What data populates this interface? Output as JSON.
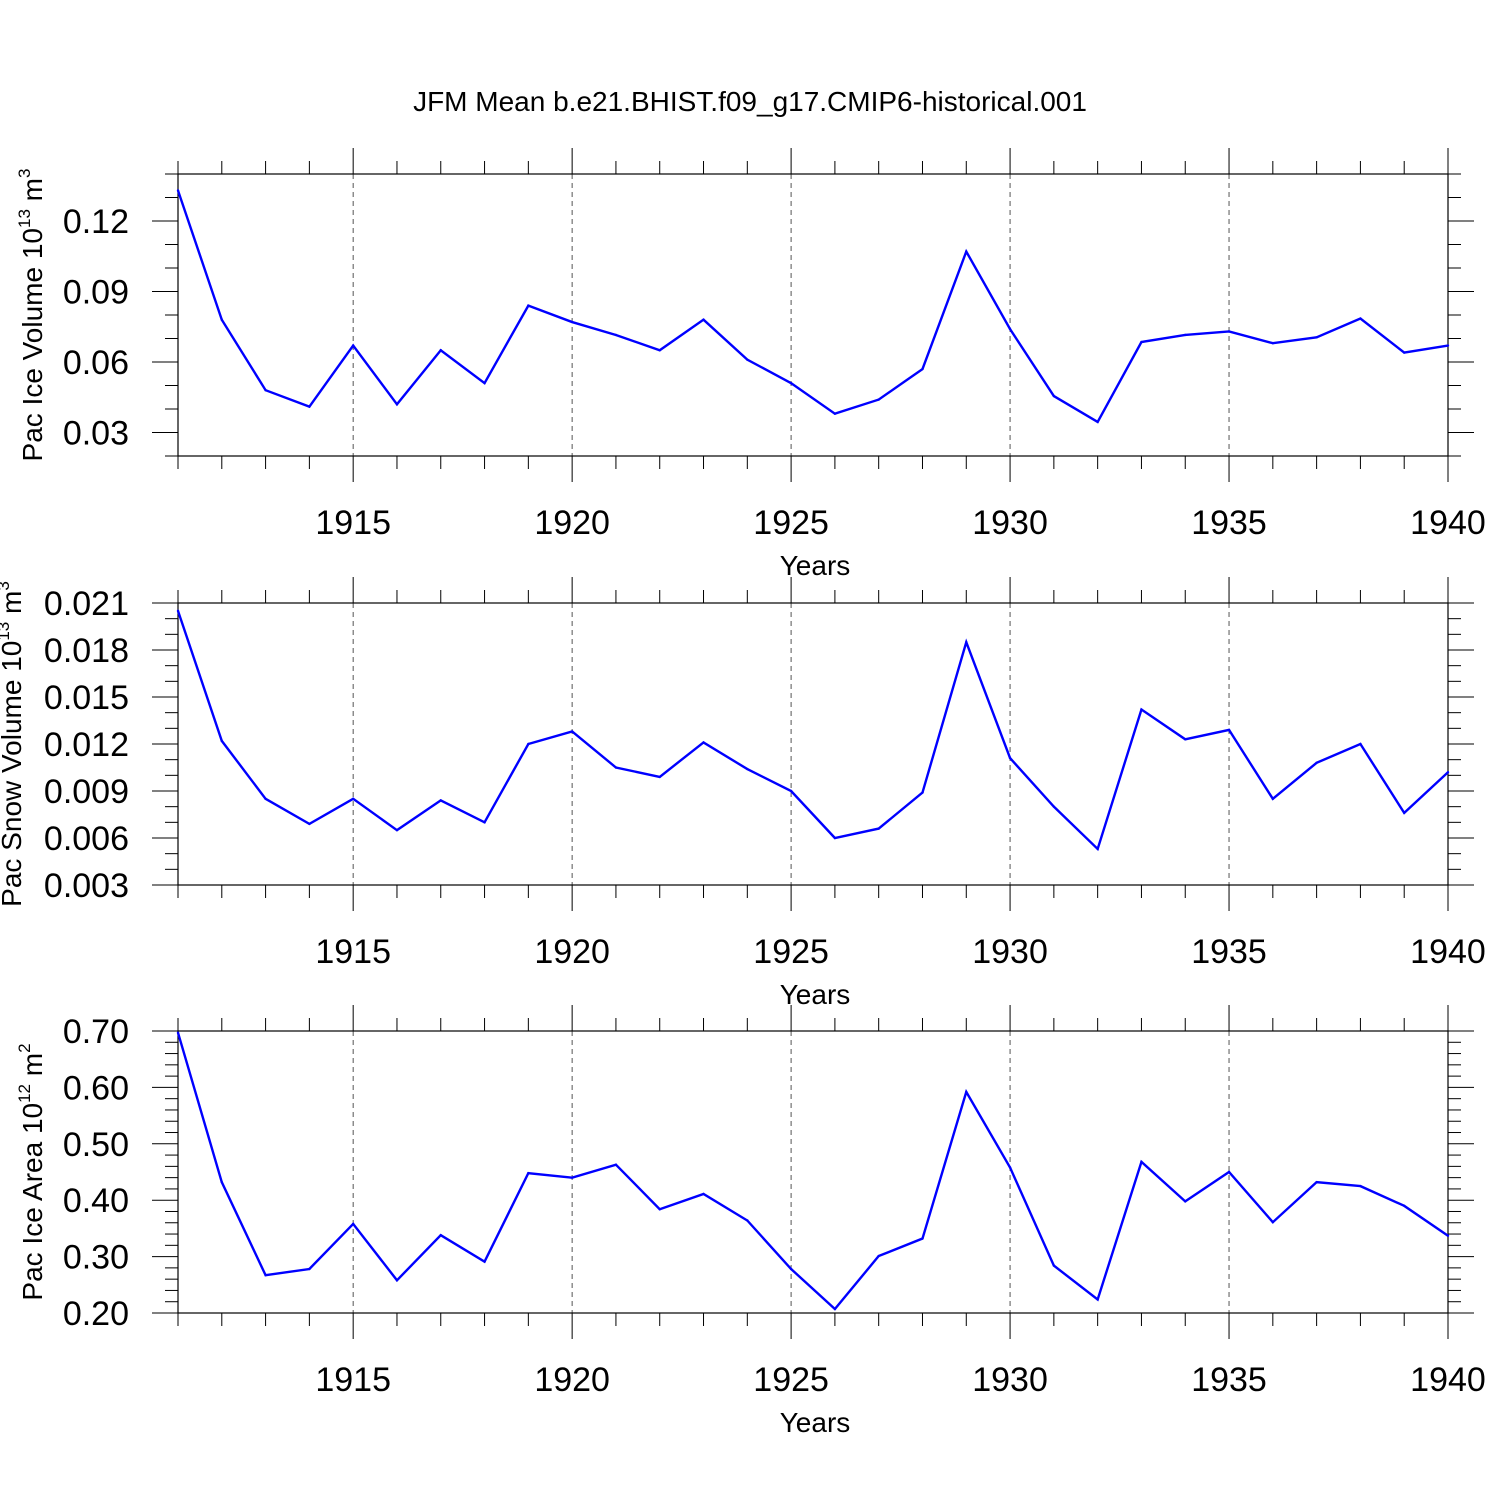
{
  "title": "JFM Mean b.e21.BHIST.f09_g17.CMIP6-historical.001",
  "line_color": "#0000ff",
  "chart_data": [
    {
      "type": "line",
      "ylabel_main": "Pac Ice Volume 10",
      "ylabel_exp": "13",
      "ylabel_unit": " m",
      "ylabel_unit_exp": "3",
      "xlabel": "Years",
      "xlim": [
        1911,
        1940
      ],
      "ylim": [
        0.02,
        0.14
      ],
      "yticks": [
        0.03,
        0.06,
        0.09,
        0.12
      ],
      "yticklabels": [
        "0.03",
        "0.06",
        "0.09",
        "0.12"
      ],
      "yminor_step": 0.01,
      "xticks": [
        1915,
        1920,
        1925,
        1930,
        1935,
        1940
      ],
      "xticklabels": [
        "1915",
        "1920",
        "1925",
        "1930",
        "1935",
        "1940"
      ],
      "series": [
        {
          "name": "Pac Ice Volume",
          "x": [
            1911,
            1912,
            1913,
            1914,
            1915,
            1916,
            1917,
            1918,
            1919,
            1920,
            1921,
            1922,
            1923,
            1924,
            1925,
            1926,
            1927,
            1928,
            1929,
            1930,
            1931,
            1932,
            1933,
            1934,
            1935,
            1936,
            1937,
            1938,
            1939,
            1940
          ],
          "values": [
            0.133,
            0.078,
            0.048,
            0.041,
            0.067,
            0.042,
            0.065,
            0.051,
            0.084,
            0.077,
            0.0715,
            0.065,
            0.078,
            0.061,
            0.051,
            0.038,
            0.044,
            0.057,
            0.107,
            0.074,
            0.0455,
            0.0345,
            0.0685,
            0.0715,
            0.073,
            0.068,
            0.0705,
            0.0785,
            0.064,
            0.067
          ]
        }
      ]
    },
    {
      "type": "line",
      "ylabel_main": "Pac Snow Volume 10",
      "ylabel_exp": "13",
      "ylabel_unit": " m",
      "ylabel_unit_exp": "3",
      "xlabel": "Years",
      "xlim": [
        1911,
        1940
      ],
      "ylim": [
        0.003,
        0.021
      ],
      "yticks": [
        0.003,
        0.006,
        0.009,
        0.012,
        0.015,
        0.018,
        0.021
      ],
      "yticklabels": [
        "0.003",
        "0.006",
        "0.009",
        "0.012",
        "0.015",
        "0.018",
        "0.021"
      ],
      "yminor_step": 0.001,
      "xticks": [
        1915,
        1920,
        1925,
        1930,
        1935,
        1940
      ],
      "xticklabels": [
        "1915",
        "1920",
        "1925",
        "1930",
        "1935",
        "1940"
      ],
      "series": [
        {
          "name": "Pac Snow Volume",
          "x": [
            1911,
            1912,
            1913,
            1914,
            1915,
            1916,
            1917,
            1918,
            1919,
            1920,
            1921,
            1922,
            1923,
            1924,
            1925,
            1926,
            1927,
            1928,
            1929,
            1930,
            1931,
            1932,
            1933,
            1934,
            1935,
            1936,
            1937,
            1938,
            1939,
            1940
          ],
          "values": [
            0.0205,
            0.0122,
            0.0085,
            0.0069,
            0.0085,
            0.0065,
            0.0084,
            0.007,
            0.012,
            0.0128,
            0.0105,
            0.0099,
            0.0121,
            0.0104,
            0.009,
            0.006,
            0.0066,
            0.0089,
            0.0185,
            0.0111,
            0.008,
            0.0053,
            0.0142,
            0.0123,
            0.0129,
            0.0085,
            0.0108,
            0.012,
            0.0076,
            0.0102
          ]
        }
      ]
    },
    {
      "type": "line",
      "ylabel_main": "Pac Ice Area 10",
      "ylabel_exp": "12",
      "ylabel_unit": " m",
      "ylabel_unit_exp": "2",
      "xlabel": "Years",
      "xlim": [
        1911,
        1940
      ],
      "ylim": [
        0.2,
        0.7
      ],
      "yticks": [
        0.2,
        0.3,
        0.4,
        0.5,
        0.6,
        0.7
      ],
      "yticklabels": [
        "0.20",
        "0.30",
        "0.40",
        "0.50",
        "0.60",
        "0.70"
      ],
      "yminor_step": 0.02,
      "xticks": [
        1915,
        1920,
        1925,
        1930,
        1935,
        1940
      ],
      "xticklabels": [
        "1915",
        "1920",
        "1925",
        "1930",
        "1935",
        "1940"
      ],
      "series": [
        {
          "name": "Pac Ice Area",
          "x": [
            1911,
            1912,
            1913,
            1914,
            1915,
            1916,
            1917,
            1918,
            1919,
            1920,
            1921,
            1922,
            1923,
            1924,
            1925,
            1926,
            1927,
            1928,
            1929,
            1930,
            1931,
            1932,
            1933,
            1934,
            1935,
            1936,
            1937,
            1938,
            1939,
            1940
          ],
          "values": [
            0.697,
            0.432,
            0.267,
            0.278,
            0.358,
            0.258,
            0.338,
            0.291,
            0.448,
            0.44,
            0.463,
            0.384,
            0.411,
            0.364,
            0.278,
            0.207,
            0.301,
            0.332,
            0.592,
            0.458,
            0.284,
            0.224,
            0.468,
            0.398,
            0.45,
            0.361,
            0.432,
            0.425,
            0.39,
            0.337
          ]
        }
      ]
    }
  ]
}
